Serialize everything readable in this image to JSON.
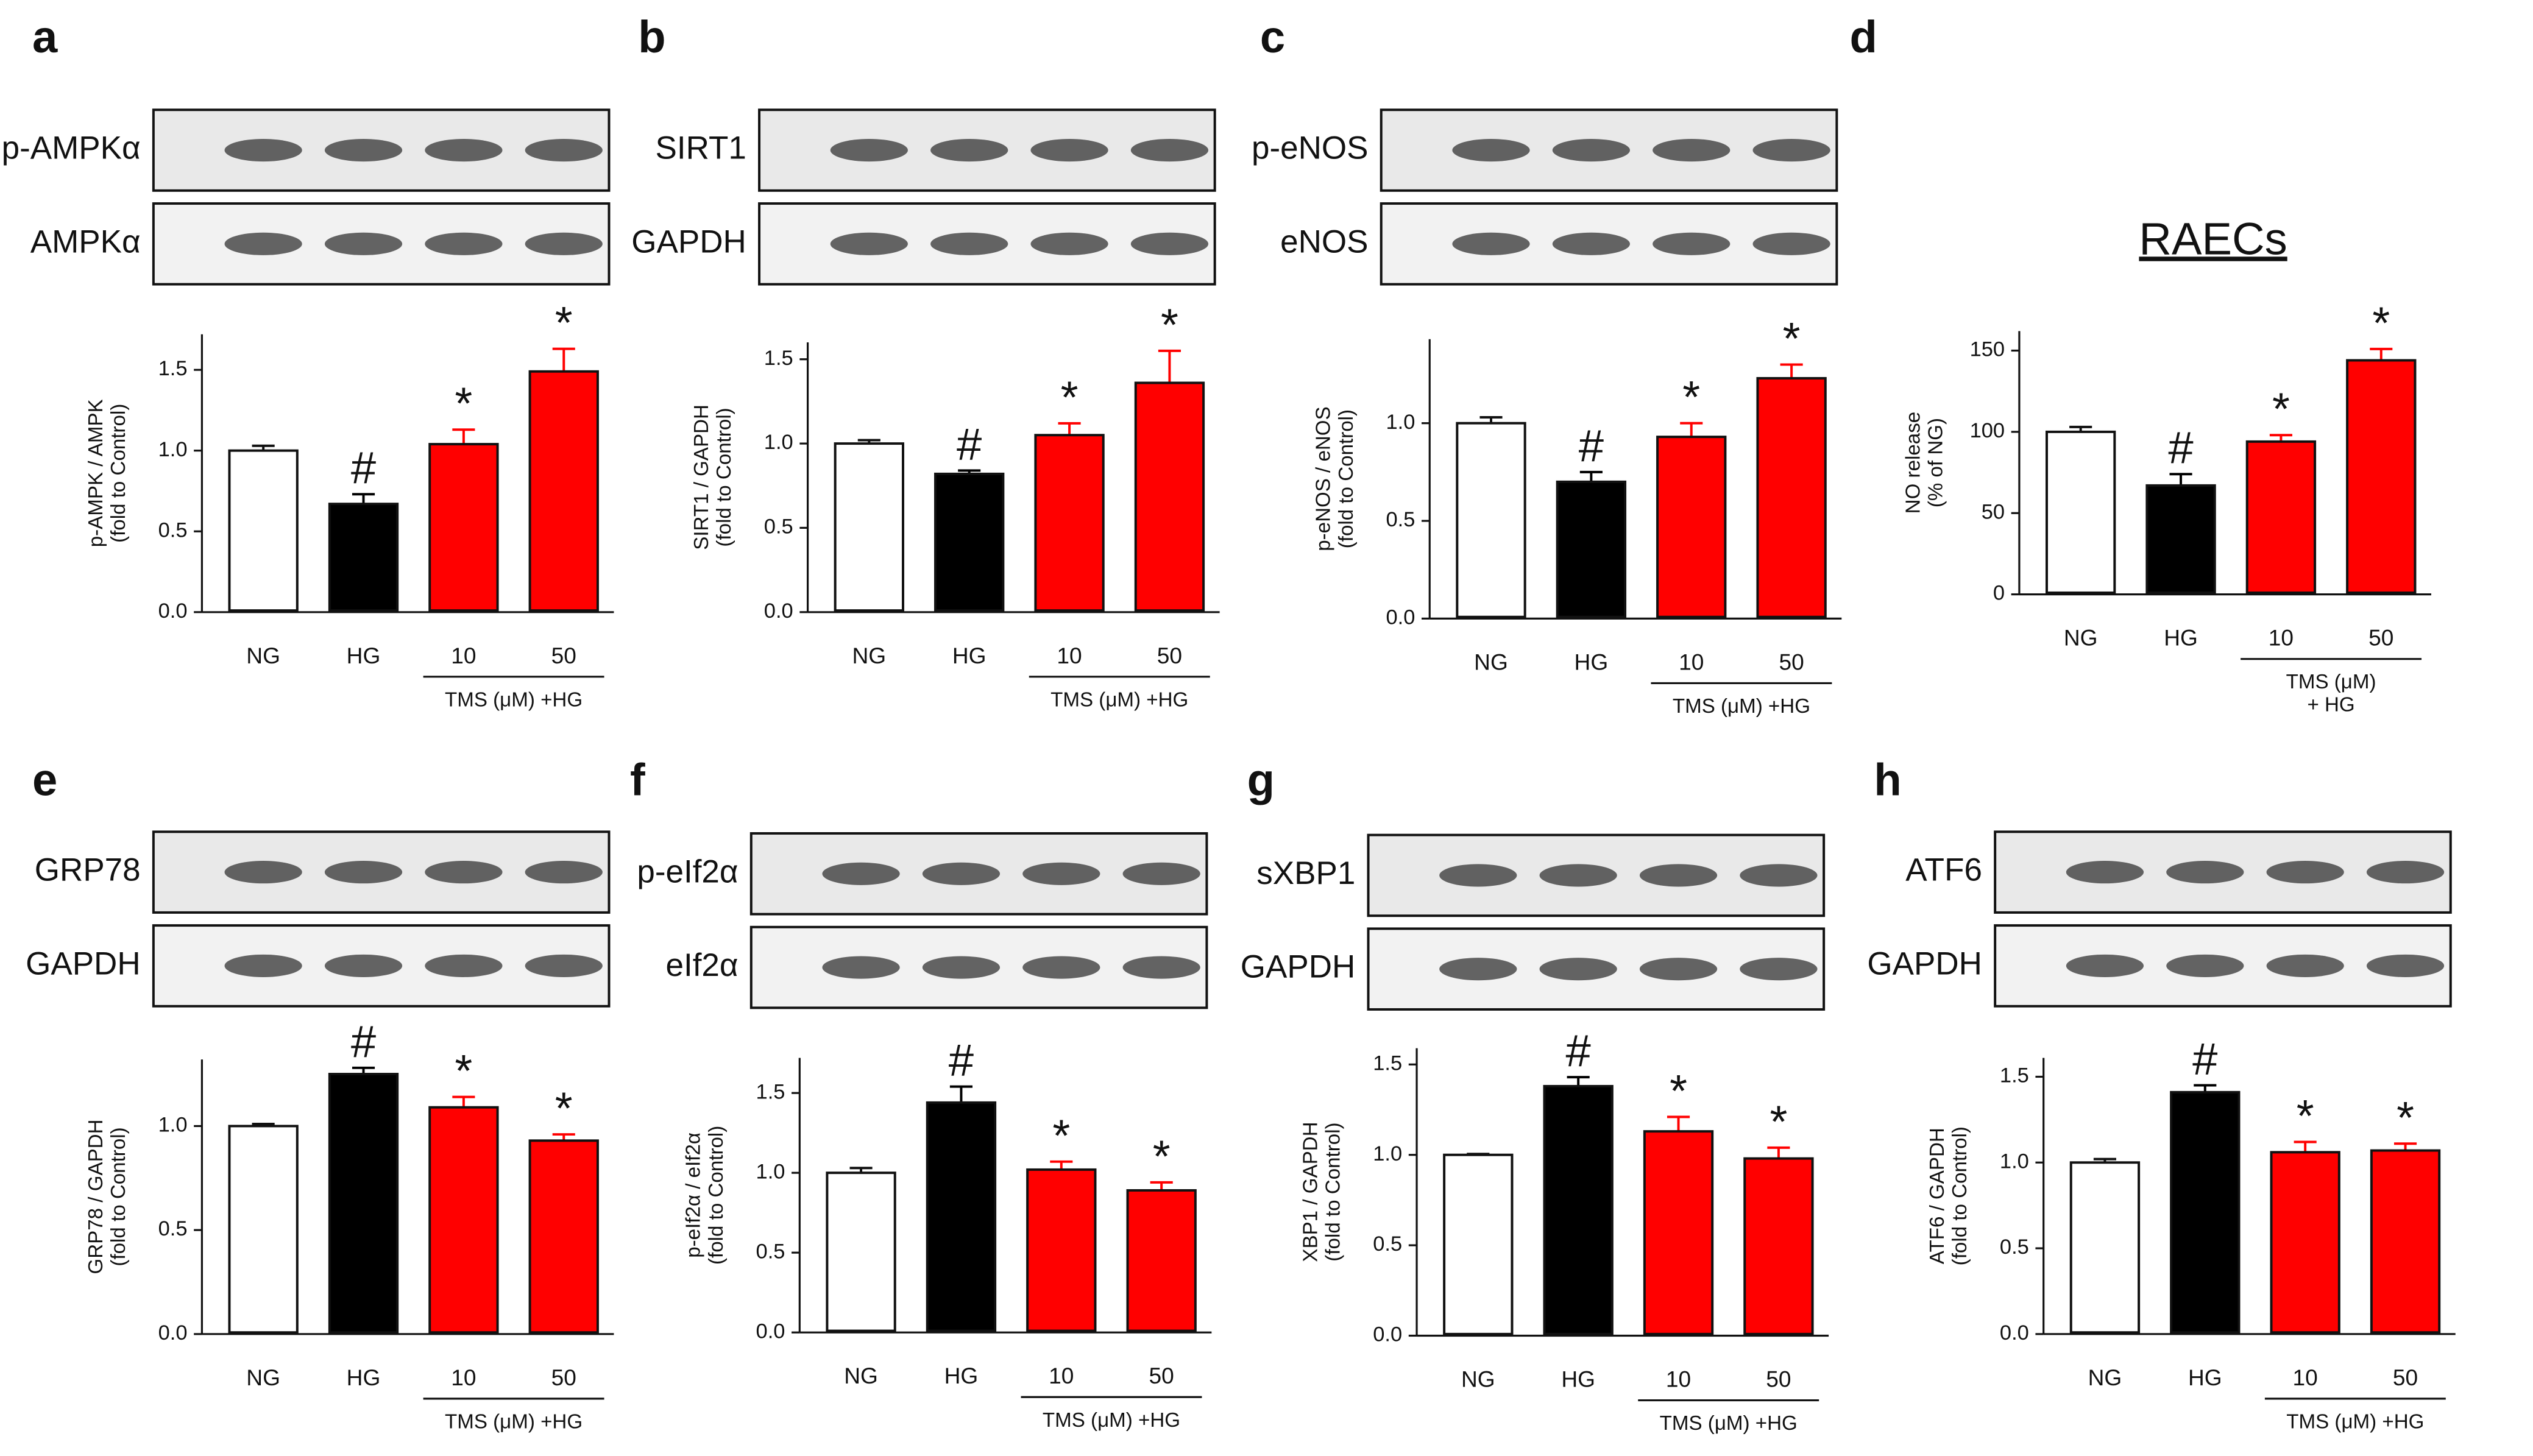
{
  "chart_data": [
    {
      "type": "bar",
      "panel": "a",
      "blots": [
        "p-AMPKα",
        "AMPKα"
      ],
      "ylabel": [
        "p-AMPK / AMPK",
        "(fold to Control)"
      ],
      "categories": [
        "NG",
        "HG",
        "10",
        "50"
      ],
      "group_label": [
        "TMS (μM) +HG"
      ],
      "values": [
        1.0,
        0.67,
        1.04,
        1.49
      ],
      "errors": [
        0.03,
        0.06,
        0.09,
        0.14
      ],
      "annotations": [
        null,
        "#",
        "*",
        "*"
      ],
      "colors": [
        "#ffffff",
        "#000000",
        "#ff0000",
        "#ff0000"
      ],
      "ylim": [
        0,
        1.72
      ],
      "yticks": [
        {
          "value": 0,
          "label": "0.0"
        },
        {
          "value": 0.5,
          "label": "0.5"
        },
        {
          "value": 1,
          "label": "1.0"
        },
        {
          "value": 1.5,
          "label": "1.5"
        }
      ]
    },
    {
      "type": "bar",
      "panel": "b",
      "blots": [
        "SIRT1",
        "GAPDH"
      ],
      "ylabel": [
        "SIRT1 / GAPDH",
        "(fold to Control)"
      ],
      "categories": [
        "NG",
        "HG",
        "10",
        "50"
      ],
      "group_label": [
        "TMS (μM) +HG"
      ],
      "values": [
        1.0,
        0.82,
        1.05,
        1.36
      ],
      "errors": [
        0.02,
        0.02,
        0.07,
        0.19
      ],
      "annotations": [
        null,
        "#",
        "*",
        "*"
      ],
      "colors": [
        "#ffffff",
        "#000000",
        "#ff0000",
        "#ff0000"
      ],
      "ylim": [
        0,
        1.6
      ],
      "yticks": [
        {
          "value": 0,
          "label": "0.0"
        },
        {
          "value": 0.5,
          "label": "0.5"
        },
        {
          "value": 1,
          "label": "1.0"
        },
        {
          "value": 1.5,
          "label": "1.5"
        }
      ]
    },
    {
      "type": "bar",
      "panel": "c",
      "blots": [
        "p-eNOS",
        "eNOS"
      ],
      "ylabel": [
        "p-eNOS / eNOS",
        "(fold to Control)"
      ],
      "categories": [
        "NG",
        "HG",
        "10",
        "50"
      ],
      "group_label": [
        "TMS (μM) +HG"
      ],
      "values": [
        1.0,
        0.7,
        0.93,
        1.23
      ],
      "errors": [
        0.03,
        0.05,
        0.07,
        0.07
      ],
      "annotations": [
        null,
        "#",
        "*",
        "*"
      ],
      "colors": [
        "#ffffff",
        "#000000",
        "#ff0000",
        "#ff0000"
      ],
      "ylim": [
        0,
        1.43
      ],
      "yticks": [
        {
          "value": 0,
          "label": "0.0"
        },
        {
          "value": 0.5,
          "label": "0.5"
        },
        {
          "value": 1,
          "label": "1.0"
        }
      ]
    },
    {
      "type": "bar",
      "panel": "d",
      "title": "RAECs",
      "ylabel": [
        "NO release",
        "(% of NG)"
      ],
      "categories": [
        "NG",
        "HG",
        "10",
        "50"
      ],
      "group_label": [
        "TMS (μM)",
        "+ HG"
      ],
      "values": [
        100,
        67,
        94,
        144
      ],
      "errors": [
        3,
        7,
        4,
        7
      ],
      "annotations": [
        null,
        "#",
        "*",
        "*"
      ],
      "colors": [
        "#ffffff",
        "#000000",
        "#ff0000",
        "#ff0000"
      ],
      "ylim": [
        0,
        162
      ],
      "yticks": [
        0,
        50,
        100,
        150
      ]
    },
    {
      "type": "bar",
      "panel": "e",
      "blots": [
        "GRP78",
        "GAPDH"
      ],
      "ylabel": [
        "GRP78 / GAPDH",
        "(fold to Control)"
      ],
      "categories": [
        "NG",
        "HG",
        "10",
        "50"
      ],
      "group_label": [
        "TMS (μM) +HG"
      ],
      "values": [
        1.0,
        1.25,
        1.09,
        0.93
      ],
      "errors": [
        0.01,
        0.03,
        0.05,
        0.03
      ],
      "annotations": [
        null,
        "#",
        "*",
        "*"
      ],
      "colors": [
        "#ffffff",
        "#000000",
        "#ff0000",
        "#ff0000"
      ],
      "ylim": [
        0,
        1.32
      ],
      "yticks": [
        {
          "value": 0,
          "label": "0.0"
        },
        {
          "value": 0.5,
          "label": "0.5"
        },
        {
          "value": 1,
          "label": "1.0"
        }
      ]
    },
    {
      "type": "bar",
      "panel": "f",
      "blots": [
        "p-eIf2α",
        "eIf2α"
      ],
      "ylabel": [
        "p-eIf2α / eIf2α",
        "(fold to Control)"
      ],
      "categories": [
        "NG",
        "HG",
        "10",
        "50"
      ],
      "group_label": [
        "TMS (μM) +HG"
      ],
      "values": [
        1.0,
        1.44,
        1.02,
        0.89
      ],
      "errors": [
        0.03,
        0.1,
        0.05,
        0.05
      ],
      "annotations": [
        null,
        "#",
        "*",
        "*"
      ],
      "colors": [
        "#ffffff",
        "#000000",
        "#ff0000",
        "#ff0000"
      ],
      "ylim": [
        0,
        1.72
      ],
      "yticks": [
        {
          "value": 0,
          "label": "0.0"
        },
        {
          "value": 0.5,
          "label": "0.5"
        },
        {
          "value": 1,
          "label": "1.0"
        },
        {
          "value": 1.5,
          "label": "1.5"
        }
      ]
    },
    {
      "type": "bar",
      "panel": "g",
      "blots": [
        "sXBP1",
        "GAPDH"
      ],
      "ylabel": [
        "XBP1 / GAPDH",
        "(fold to Control)"
      ],
      "categories": [
        "NG",
        "HG",
        "10",
        "50"
      ],
      "group_label": [
        "TMS (μM) +HG"
      ],
      "values": [
        1.0,
        1.38,
        1.13,
        0.98
      ],
      "errors": [
        0.005,
        0.05,
        0.08,
        0.06
      ],
      "annotations": [
        null,
        "#",
        "*",
        "*"
      ],
      "colors": [
        "#ffffff",
        "#000000",
        "#ff0000",
        "#ff0000"
      ],
      "ylim": [
        0,
        1.59
      ],
      "yticks": [
        {
          "value": 0,
          "label": "0.0"
        },
        {
          "value": 0.5,
          "label": "0.5"
        },
        {
          "value": 1,
          "label": "1.0"
        },
        {
          "value": 1.5,
          "label": "1.5"
        }
      ]
    },
    {
      "type": "bar",
      "panel": "h",
      "blots": [
        "ATF6",
        "GAPDH"
      ],
      "ylabel": [
        "ATF6 / GAPDH",
        "(fold to Control)"
      ],
      "categories": [
        "NG",
        "HG",
        "10",
        "50"
      ],
      "group_label": [
        "TMS (μM) +HG"
      ],
      "values": [
        1.0,
        1.41,
        1.06,
        1.07
      ],
      "errors": [
        0.02,
        0.04,
        0.06,
        0.04
      ],
      "annotations": [
        null,
        "#",
        "*",
        "*"
      ],
      "colors": [
        "#ffffff",
        "#000000",
        "#ff0000",
        "#ff0000"
      ],
      "ylim": [
        0,
        1.61
      ],
      "yticks": [
        {
          "value": 0,
          "label": "0.0"
        },
        {
          "value": 0.5,
          "label": "0.5"
        },
        {
          "value": 1,
          "label": "1.0"
        },
        {
          "value": 1.5,
          "label": "1.5"
        }
      ]
    }
  ]
}
